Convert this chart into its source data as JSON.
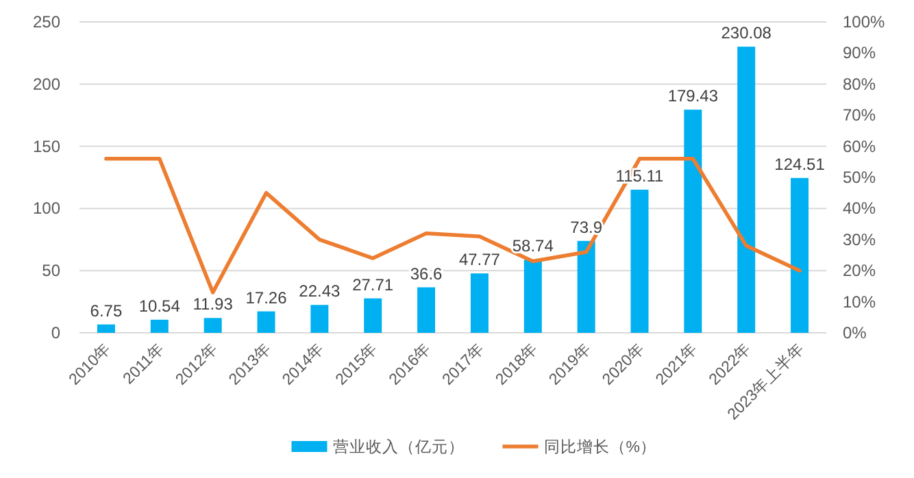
{
  "chart_data": {
    "type": "bar",
    "categories": [
      "2010年",
      "2011年",
      "2012年",
      "2013年",
      "2014年",
      "2015年",
      "2016年",
      "2017年",
      "2018年",
      "2019年",
      "2020年",
      "2021年",
      "2022年",
      "2023年上半年"
    ],
    "series": [
      {
        "name": "营业收入（亿元）",
        "color": "#00b0f0",
        "values": [
          6.75,
          10.54,
          11.93,
          17.26,
          22.43,
          27.71,
          36.6,
          47.77,
          58.74,
          73.9,
          115.11,
          179.43,
          230.08,
          124.51
        ],
        "value_labels": [
          "6.75",
          "10.54",
          "11.93",
          "17.26",
          "22.43",
          "27.71",
          "36.6",
          "47.77",
          "58.74",
          "73.9",
          "115.11",
          "179.43",
          "230.08",
          "124.51"
        ]
      },
      {
        "name": "同比增长（%）",
        "type": "line",
        "axis": "y2",
        "color": "#ed7d31",
        "values": [
          56,
          56,
          13,
          45,
          30,
          24,
          32,
          31,
          23,
          26,
          56,
          56,
          28,
          20
        ]
      }
    ],
    "ylim": [
      0,
      250
    ],
    "yticks": [
      0,
      50,
      100,
      150,
      200,
      250
    ],
    "y2lim": [
      0,
      100
    ],
    "y2ticks": [
      {
        "value": 0,
        "label": "0%"
      },
      {
        "value": 10,
        "label": "10%"
      },
      {
        "value": 20,
        "label": "20%"
      },
      {
        "value": 30,
        "label": "30%"
      },
      {
        "value": 40,
        "label": "40%"
      },
      {
        "value": 50,
        "label": "50%"
      },
      {
        "value": 60,
        "label": "60%"
      },
      {
        "value": 70,
        "label": "70%"
      },
      {
        "value": 80,
        "label": "80%"
      },
      {
        "value": 90,
        "label": "90%"
      },
      {
        "value": 100,
        "label": "100%"
      }
    ],
    "grid": "y",
    "legend": "bottom"
  }
}
